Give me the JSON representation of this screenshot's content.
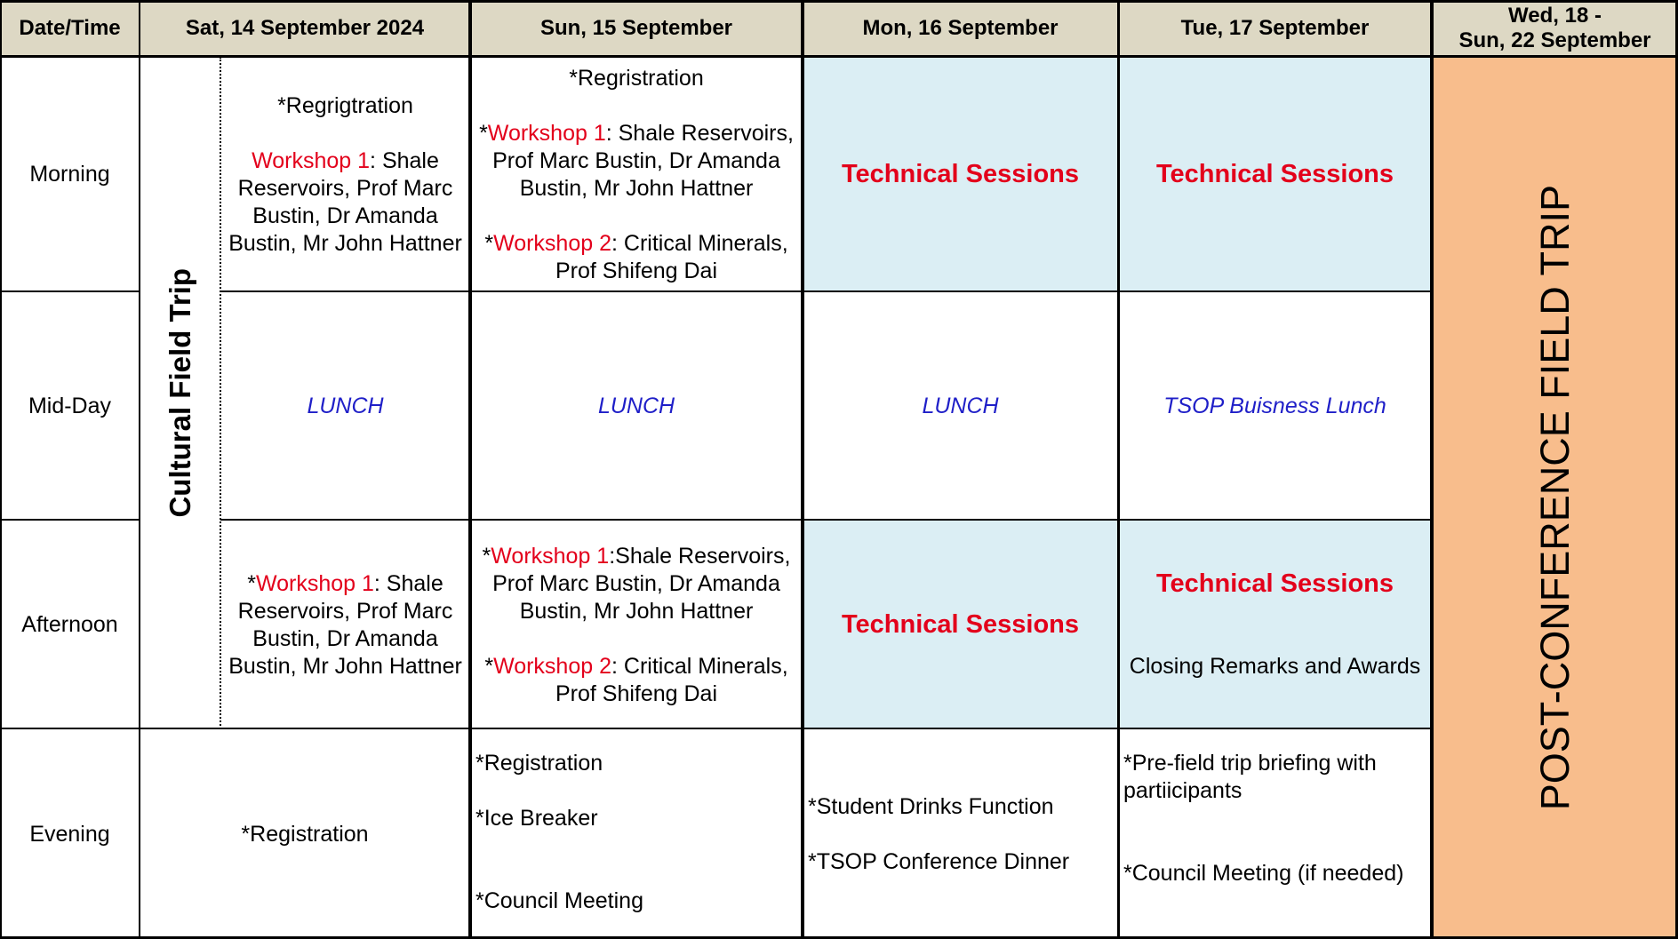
{
  "header": {
    "datetime": "Date/Time",
    "sat": "Sat, 14 September 2024",
    "sun": "Sun, 15 September",
    "mon": "Mon, 16 September",
    "tue": "Tue, 17 September",
    "wed_line1": "Wed, 18 -",
    "wed_line2": "Sun, 22 September"
  },
  "rows": {
    "morning": "Morning",
    "midday": "Mid-Day",
    "afternoon": "Afternoon",
    "evening": "Evening"
  },
  "sat": {
    "field_trip": "Cultural Field Trip",
    "morning_registration": "*Regrigtration",
    "morning_ws1": "Workshop 1",
    "morning_ws1_rest": ": Shale Reservoirs, Prof Marc Bustin, Dr Amanda Bustin, Mr John Hattner",
    "lunch": "LUNCH",
    "afternoon_star": "*",
    "afternoon_ws1": "Workshop 1",
    "afternoon_ws1_rest": ": Shale Reservoirs, Prof Marc Bustin, Dr Amanda Bustin, Mr John Hattner",
    "evening": "*Registration"
  },
  "sun": {
    "morning_registration": "*Regristration",
    "star": "*",
    "ws1": "Workshop 1",
    "morning_ws1_rest": ": Shale Reservoirs, Prof Marc Bustin, Dr Amanda Bustin, Mr John Hattner",
    "ws2": "Workshop 2",
    "ws2_rest": ": Critical Minerals, Prof Shifeng Dai",
    "lunch": "LUNCH",
    "afternoon_ws1_rest": ":Shale Reservoirs, Prof Marc Bustin, Dr Amanda Bustin, Mr John Hattner",
    "evening_registration": "*Registration",
    "evening_icebreaker": "*Ice Breaker",
    "evening_council": "*Council Meeting"
  },
  "mon": {
    "morning": "Technical Sessions",
    "lunch": "LUNCH",
    "afternoon": "Technical Sessions",
    "evening_drinks": "*Student Drinks Function",
    "evening_dinner": "*TSOP Conference Dinner"
  },
  "tue": {
    "morning": "Technical Sessions",
    "lunch": "TSOP Buisness Lunch",
    "afternoon": "Technical Sessions",
    "afternoon_closing": "Closing Remarks and Awards",
    "evening_briefing": "*Pre-field trip briefing with partiicipants",
    "evening_council": "*Council Meeting (if needed)"
  },
  "wed": {
    "field_trip": "POST-CONFERENCE FIELD TRIP"
  },
  "colors": {
    "header_bg": "#ddd8c4",
    "tech_bg": "#dbeef4",
    "field_trip_bg": "#f8bd8c",
    "workshop_red": "#e3001b",
    "lunch_blue": "#1f1fc8"
  }
}
